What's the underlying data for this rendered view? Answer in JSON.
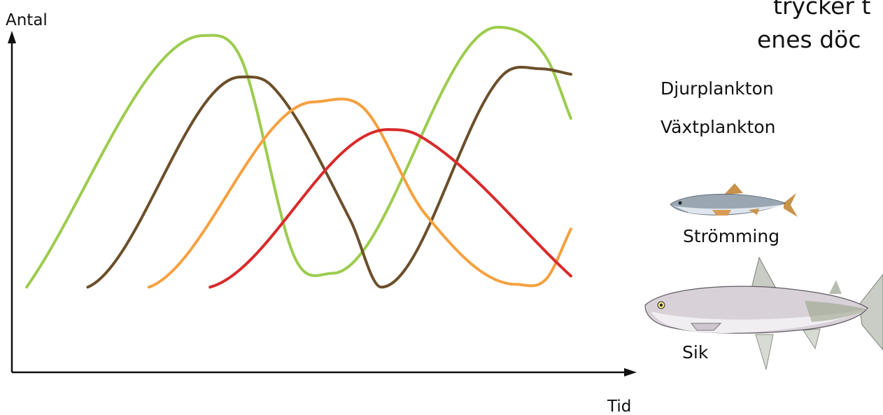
{
  "page": {
    "corner_text_1": "trycker t",
    "corner_text_2": "enes döc"
  },
  "chart_data": {
    "type": "line",
    "title": "",
    "xlabel": "Tid",
    "ylabel": "Antal",
    "xlim": [
      0,
      100
    ],
    "ylim": [
      0,
      100
    ],
    "grid": false,
    "legend": [
      {
        "name": "Djurplankton",
        "color": "#6b4f2a"
      },
      {
        "name": "Växtplankton",
        "color": "#9ccc4e"
      },
      {
        "name": "Strömming",
        "icon": "herring-icon"
      },
      {
        "name": "Sik",
        "icon": "whitefish-icon"
      }
    ],
    "series": [
      {
        "color": "#9ccc4e",
        "x": [
          0,
          29,
          35,
          44,
          50,
          77,
          85,
          89
        ],
        "y": [
          5,
          96,
          88,
          15,
          10,
          99,
          88,
          66
        ]
      },
      {
        "color": "#6b4f2a",
        "x": [
          10,
          35,
          40,
          53,
          58,
          78,
          84,
          89
        ],
        "y": [
          5,
          81,
          78,
          29,
          5,
          82,
          84,
          82
        ]
      },
      {
        "color": "#f5a140",
        "x": [
          20,
          47,
          55,
          65,
          80,
          85,
          89
        ],
        "y": [
          5,
          72,
          70,
          32,
          6,
          8,
          26
        ]
      },
      {
        "color": "#d92a2a",
        "x": [
          30,
          59,
          64,
          89
        ],
        "y": [
          5,
          62,
          60,
          9
        ]
      }
    ]
  }
}
